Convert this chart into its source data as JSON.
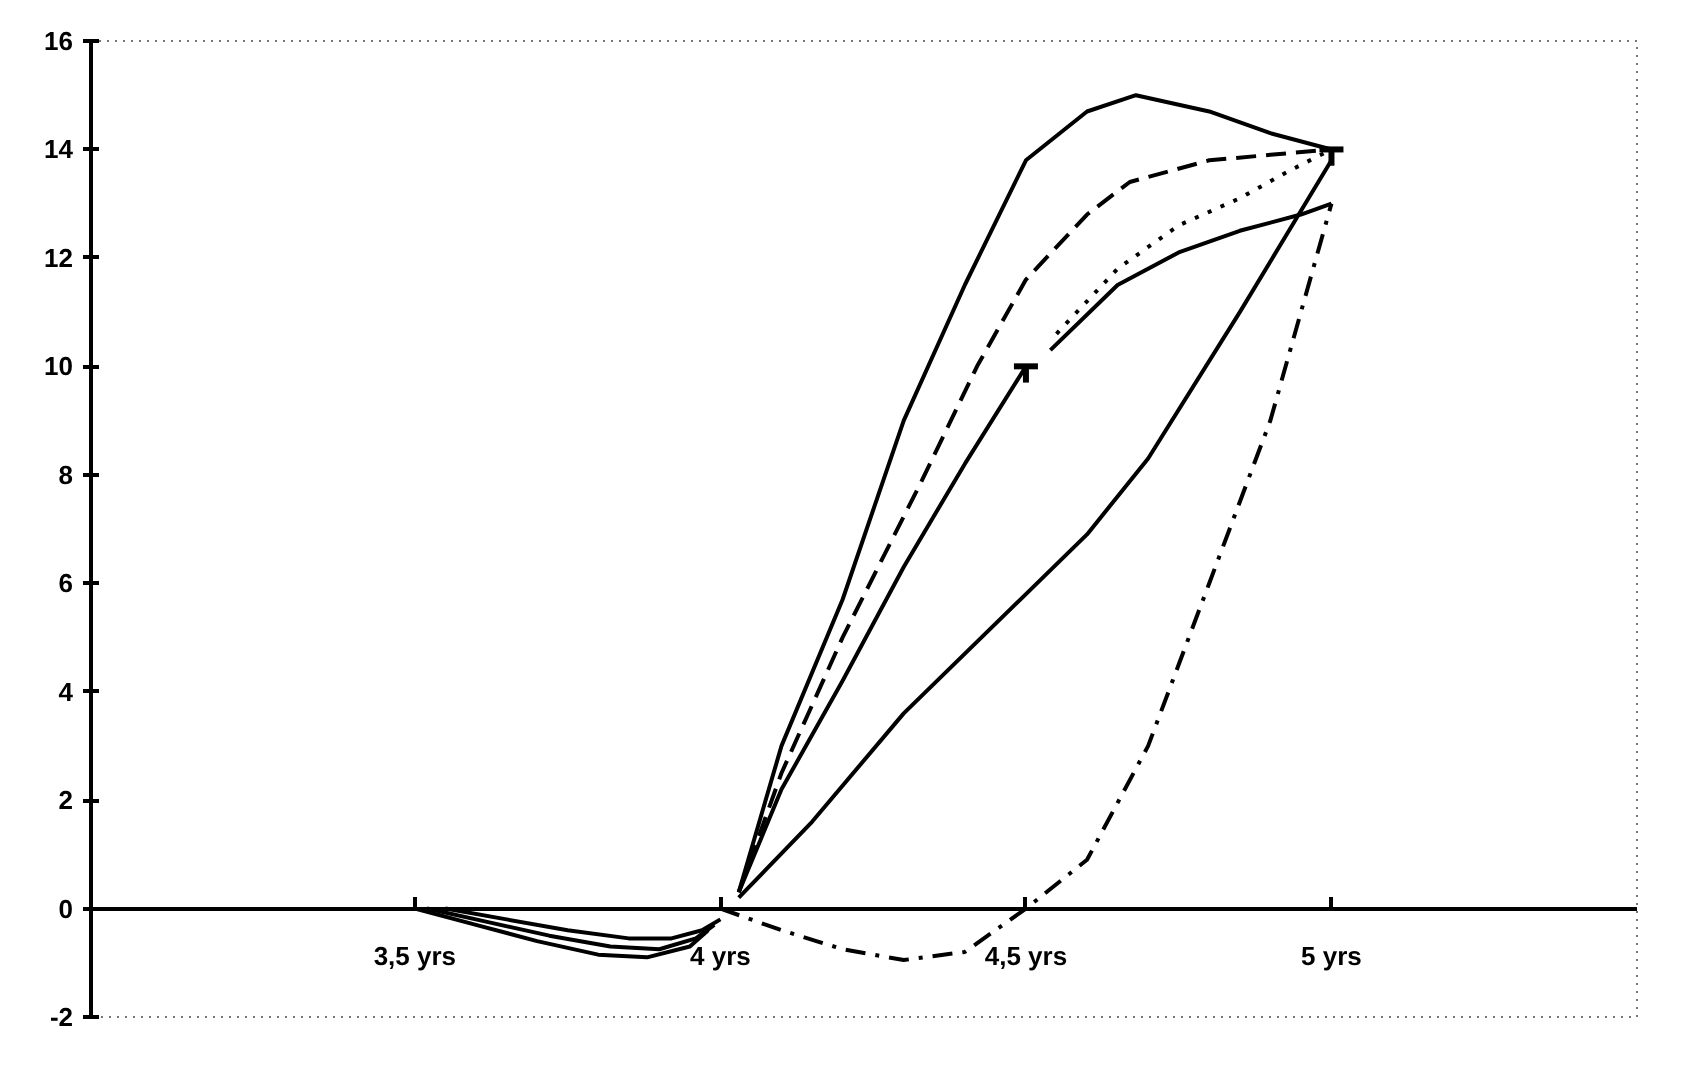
{
  "chart_data": {
    "type": "line",
    "xlim": [
      2.97,
      5.5
    ],
    "ylim": [
      -2,
      16
    ],
    "xticks": [
      {
        "value": 3.5,
        "label": "3,5 yrs"
      },
      {
        "value": 4,
        "label": "4 yrs"
      },
      {
        "value": 4.5,
        "label": "4,5 yrs"
      },
      {
        "value": 5,
        "label": "5 yrs"
      }
    ],
    "yticks": [
      -2,
      0,
      2,
      4,
      6,
      8,
      10,
      12,
      14,
      16
    ],
    "marker": "none",
    "series": [
      {
        "color": "#000000",
        "line_style": "solid",
        "x": [
          3.5,
          3.6,
          3.7,
          3.8,
          3.88,
          3.95,
          3.98
        ],
        "values": [
          0,
          -0.3,
          -0.6,
          -0.85,
          -0.9,
          -0.7,
          -0.4
        ]
      },
      {
        "color": "#000000",
        "line_style": "solid",
        "x": [
          3.52,
          3.62,
          3.72,
          3.82,
          3.9,
          3.96,
          3.99
        ],
        "values": [
          0,
          -0.25,
          -0.5,
          -0.7,
          -0.75,
          -0.55,
          -0.3
        ]
      },
      {
        "color": "#000000",
        "line_style": "solid",
        "x": [
          3.55,
          3.65,
          3.75,
          3.85,
          3.92,
          3.97,
          4.0
        ],
        "values": [
          0,
          -0.2,
          -0.4,
          -0.55,
          -0.55,
          -0.4,
          -0.2
        ]
      },
      {
        "color": "#000000",
        "line_style": "solid",
        "x": [
          4.03,
          4.1,
          4.2,
          4.3,
          4.4,
          4.5,
          4.6,
          4.68,
          4.8,
          4.9,
          5.0
        ],
        "values": [
          0.3,
          3,
          5.7,
          9,
          11.5,
          13.8,
          14.7,
          15,
          14.7,
          14.3,
          14
        ]
      },
      {
        "color": "#000000",
        "line_style": "dashed",
        "x": [
          4.03,
          4.1,
          4.2,
          4.33,
          4.42,
          4.5,
          4.6,
          4.67,
          4.8,
          4.9,
          5.0
        ],
        "values": [
          0.3,
          2.5,
          5,
          7.9,
          10,
          11.6,
          12.8,
          13.4,
          13.8,
          13.9,
          14
        ]
      },
      {
        "color": "#000000",
        "line_style": "solid",
        "x": [
          4.03,
          4.1,
          4.2,
          4.3,
          4.4,
          4.5
        ],
        "values": [
          0.3,
          2.2,
          4.2,
          6.3,
          8.2,
          10
        ],
        "errors": [
          null,
          null,
          null,
          null,
          null,
          [
            9.7,
            10
          ]
        ]
      },
      {
        "color": "#000000",
        "line_style": "solid",
        "x": [
          4.54,
          4.65,
          4.75,
          4.85,
          4.95,
          5.0
        ],
        "values": [
          10.3,
          11.5,
          12.1,
          12.5,
          12.8,
          13
        ]
      },
      {
        "color": "#000000",
        "line_style": "dotted",
        "x": [
          4.55,
          4.65,
          4.75,
          4.85,
          4.93,
          5.0
        ],
        "values": [
          10.6,
          11.8,
          12.6,
          13.1,
          13.6,
          14
        ],
        "errors": [
          null,
          null,
          null,
          null,
          null,
          [
            13.7,
            14
          ]
        ]
      },
      {
        "color": "#000000",
        "line_style": "solid",
        "x": [
          4.03,
          4.15,
          4.3,
          4.5,
          4.6,
          4.7,
          4.85,
          5.0
        ],
        "values": [
          0.2,
          1.6,
          3.6,
          5.8,
          6.9,
          8.3,
          11,
          13.8
        ]
      },
      {
        "color": "#000000",
        "line_style": "dashdot",
        "x": [
          4.0,
          4.1,
          4.2,
          4.3,
          4.4,
          4.5,
          4.6,
          4.7,
          4.8,
          4.9,
          4.95,
          5.0
        ],
        "values": [
          0,
          -0.4,
          -0.75,
          -0.95,
          -0.8,
          0,
          0.9,
          3,
          6,
          9,
          11,
          13
        ]
      }
    ]
  }
}
